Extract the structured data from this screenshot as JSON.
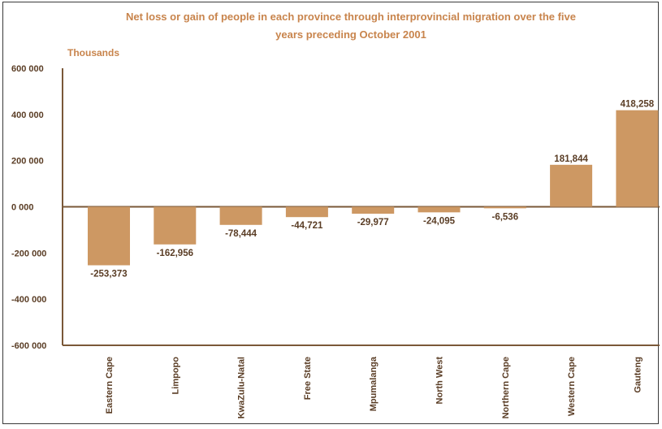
{
  "colors": {
    "bar": "#cd9863",
    "title": "#c8844c",
    "text": "#5a3d25",
    "axis": "#7a5838"
  },
  "chart_data": {
    "type": "bar",
    "title_lines": [
      "Net loss or gain of people in each province through interprovincial migration over the five",
      "years preceding October 2001"
    ],
    "unit_label": "Thousands",
    "categories": [
      "Eastern Cape",
      "Limpopo",
      "KwaZulu-Natal",
      "Free State",
      "Mpumalanga",
      "North West",
      "Northern Cape",
      "Western Cape",
      "Gauteng"
    ],
    "values": [
      -253373,
      -162956,
      -78444,
      -44721,
      -29977,
      -24095,
      -6536,
      181844,
      418258
    ],
    "value_labels": [
      "-253,373",
      "-162,956",
      "-78,444",
      "-44,721",
      "-29,977",
      "-24,095",
      "-6,536",
      "181,844",
      "418,258"
    ],
    "ylim": [
      -600000,
      600000
    ],
    "yticks": [
      600000,
      400000,
      200000,
      0,
      -200000,
      -400000,
      -600000
    ],
    "ytick_labels": [
      "600 000",
      "400 000",
      "200 000",
      "0 000",
      "-200 000",
      "-400 000",
      "-600 000"
    ],
    "grid": false,
    "legend": "none"
  }
}
